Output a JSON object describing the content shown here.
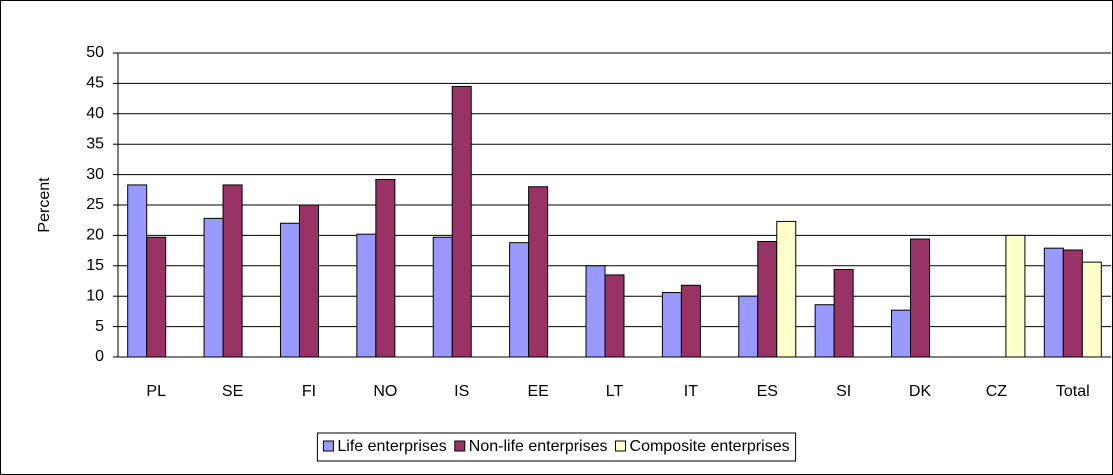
{
  "chart_data": {
    "type": "bar",
    "y_label": "Percent",
    "categories": [
      "PL",
      "SE",
      "FI",
      "NO",
      "IS",
      "EE",
      "LT",
      "IT",
      "ES",
      "SI",
      "DK",
      "CZ",
      "Total"
    ],
    "series": [
      {
        "name": "Life enterprises",
        "color": "#9999ff",
        "values": [
          28.3,
          22.8,
          22.0,
          20.2,
          19.7,
          18.8,
          15.0,
          10.6,
          10.0,
          8.6,
          7.7,
          null,
          17.9
        ]
      },
      {
        "name": "Non-life enterprises",
        "color": "#993366",
        "values": [
          19.7,
          28.3,
          25.0,
          29.2,
          44.5,
          28.0,
          13.5,
          11.8,
          19.0,
          14.4,
          19.4,
          null,
          17.6
        ]
      },
      {
        "name": "Composite enterprises",
        "color": "#ffffcc",
        "values": [
          null,
          null,
          null,
          null,
          null,
          null,
          null,
          null,
          22.3,
          null,
          null,
          20.0,
          15.6
        ]
      }
    ],
    "ylim": [
      0,
      50
    ],
    "yticks": [
      0,
      5,
      10,
      15,
      20,
      25,
      30,
      35,
      40,
      45,
      50
    ],
    "grid": true,
    "legend": "bottom"
  }
}
